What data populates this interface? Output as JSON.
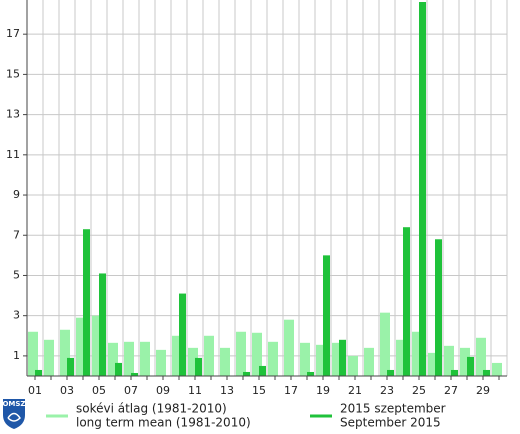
{
  "chart_data": {
    "type": "bar",
    "logo": "OMSZ",
    "categories": [
      "01",
      null,
      "03",
      null,
      "05",
      null,
      "07",
      null,
      "09",
      null,
      "11",
      null,
      "13",
      null,
      "15",
      null,
      "17",
      null,
      "19",
      null,
      "21",
      null,
      "23",
      null,
      "25",
      null,
      "27",
      null,
      "29",
      null
    ],
    "series": [
      {
        "name": "sokévi átlag (1981-2010)",
        "name_en": "long term mean (1981-2010)",
        "color": "#9af2a9",
        "values": [
          2.2,
          1.8,
          2.3,
          2.9,
          3.0,
          1.65,
          1.7,
          1.7,
          1.3,
          2.0,
          1.4,
          2.0,
          1.4,
          2.2,
          2.15,
          1.7,
          2.8,
          1.65,
          1.55,
          1.65,
          1.0,
          1.4,
          3.15,
          1.8,
          2.2,
          1.15,
          1.5,
          1.4,
          1.9,
          0.65
        ]
      },
      {
        "name": "2015 szeptember",
        "name_en": "September 2015",
        "color": "#1fc23a",
        "values": [
          0.3,
          0,
          0.9,
          7.3,
          5.1,
          0.65,
          0.15,
          0,
          0,
          4.1,
          0.9,
          0,
          0,
          0.2,
          0.5,
          0,
          0,
          0.2,
          6.0,
          1.8,
          0,
          0,
          0.3,
          7.4,
          18.6,
          6.8,
          0.3,
          0.95,
          0.3,
          0
        ]
      }
    ],
    "ylim": [
      0,
      18.7
    ],
    "yticks": [
      1,
      3,
      5,
      7,
      9,
      11,
      13,
      15,
      17
    ],
    "grid": true
  }
}
